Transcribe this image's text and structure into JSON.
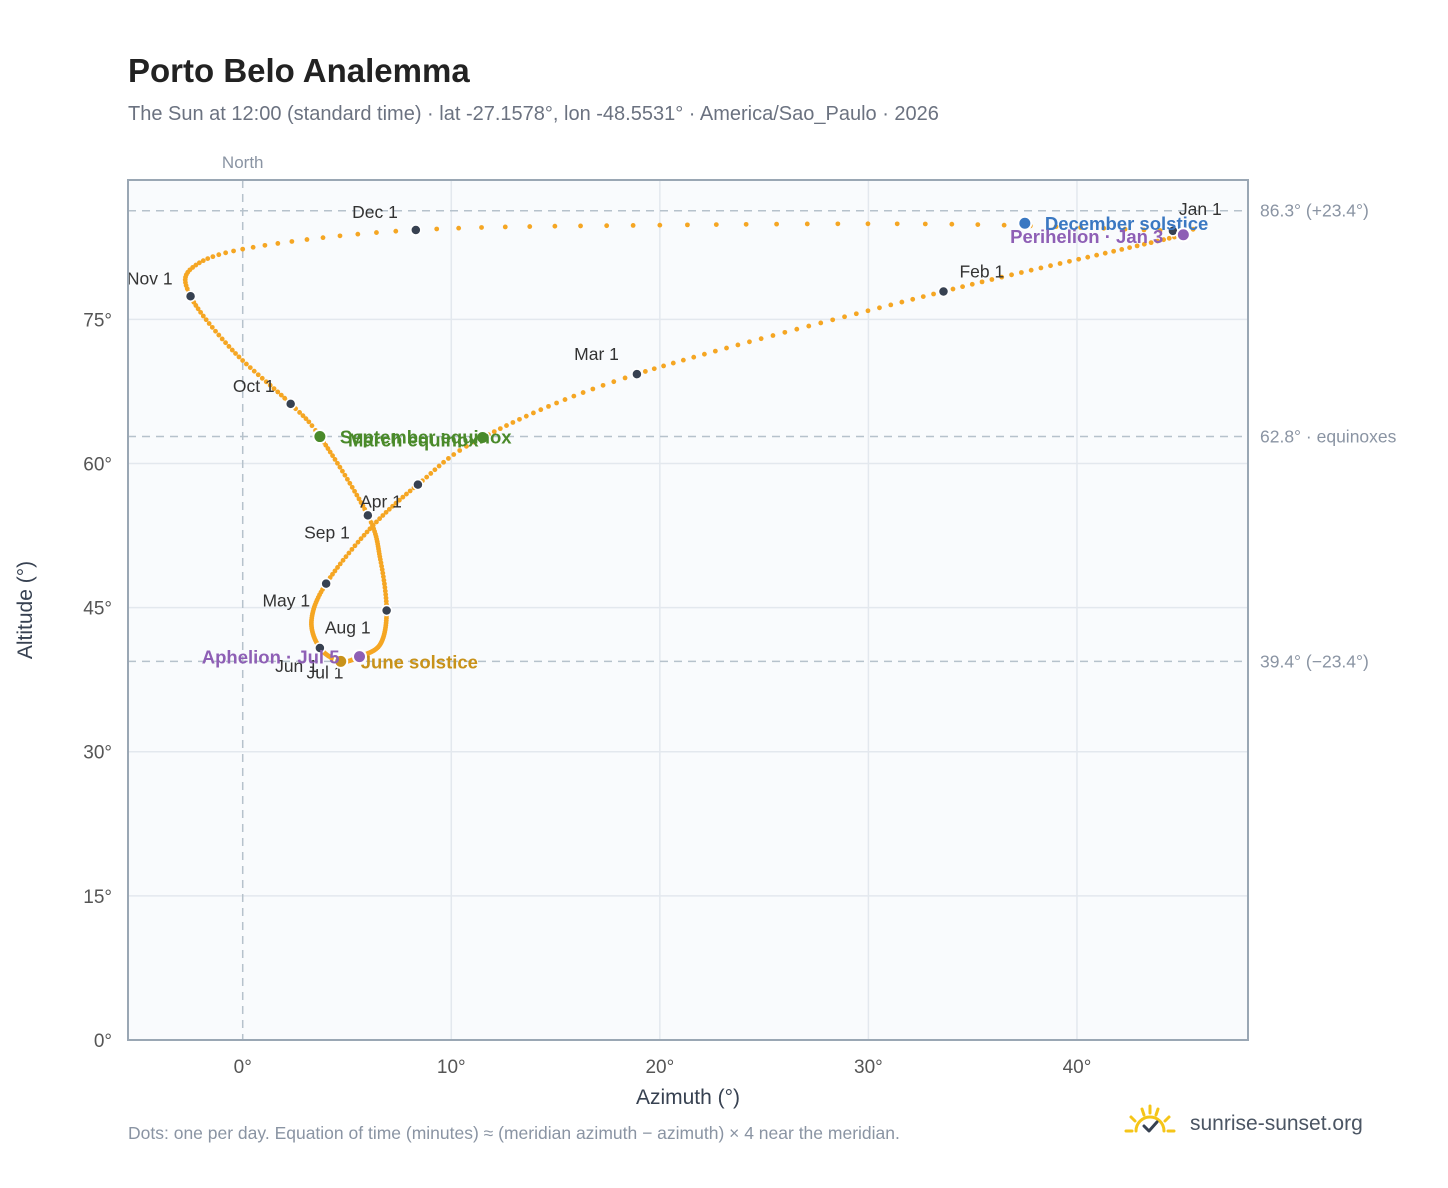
{
  "title": "Porto Belo Analemma",
  "subtitle": "The Sun at 12:00 (standard time) · lat -27.1578°, lon -48.5531° · America/Sao_Paulo · 2026",
  "footer_note": "Dots: one per day. Equation of time (minutes) ≈ (meridian azimuth − azimuth) × 4 near the meridian.",
  "brand": {
    "name": "sunrise-sunset.org",
    "icon": "sun-logo-icon"
  },
  "colors": {
    "curve": "#f5a623",
    "month_marker": "#374151",
    "december_solstice": "#3a78c2",
    "june_solstice": "#c8921a",
    "equinox": "#4a8a2a",
    "perihelion": "#8e5fb5",
    "ref_line": "#b6c2cc",
    "plot_bg": "#f9fbfd",
    "frame": "#9aa7b4"
  },
  "chart_data": {
    "type": "scatter",
    "title": "Porto Belo Analemma",
    "xlabel": "Azimuth (°)",
    "ylabel": "Altitude (°)",
    "xlim": [
      -5.5,
      48.2
    ],
    "ylim": [
      0,
      89.5
    ],
    "x_ticks": [
      0,
      10,
      20,
      30,
      40
    ],
    "x_tick_labels": [
      "0°",
      "10°",
      "20°",
      "30°",
      "40°"
    ],
    "y_ticks": [
      0,
      15,
      30,
      45,
      60,
      75
    ],
    "y_tick_labels": [
      "0°",
      "15°",
      "30°",
      "45°",
      "60°",
      "75°"
    ],
    "grid": true,
    "north": {
      "azimuth": 0,
      "label": "North"
    },
    "reference_lines": [
      {
        "altitude": 86.3,
        "label": "86.3° (+23.4°)"
      },
      {
        "altitude": 62.8,
        "label": "62.8° · equinoxes"
      },
      {
        "altitude": 39.4,
        "label": "39.4° (−23.4°)"
      }
    ],
    "curve_knots": [
      {
        "day": 1,
        "x": 44.6,
        "y": 84.2
      },
      {
        "day": 3,
        "x": 45.1,
        "y": 83.8
      },
      {
        "day": 32,
        "x": 33.6,
        "y": 77.9
      },
      {
        "day": 60,
        "x": 18.9,
        "y": 69.3
      },
      {
        "day": 79,
        "x": 11.5,
        "y": 62.7
      },
      {
        "day": 91,
        "x": 8.4,
        "y": 57.8
      },
      {
        "day": 105,
        "x": 6.1,
        "y": 53.2
      },
      {
        "day": 121,
        "x": 4.0,
        "y": 47.5
      },
      {
        "day": 136,
        "x": 3.3,
        "y": 43.7
      },
      {
        "day": 152,
        "x": 3.7,
        "y": 40.8
      },
      {
        "day": 172,
        "x": 4.7,
        "y": 39.4
      },
      {
        "day": 182,
        "x": 5.6,
        "y": 39.9
      },
      {
        "day": 197,
        "x": 6.6,
        "y": 41.2
      },
      {
        "day": 213,
        "x": 6.9,
        "y": 44.7
      },
      {
        "day": 228,
        "x": 6.6,
        "y": 50.0
      },
      {
        "day": 244,
        "x": 6.0,
        "y": 54.6
      },
      {
        "day": 266,
        "x": 3.7,
        "y": 62.8
      },
      {
        "day": 274,
        "x": 2.3,
        "y": 66.2
      },
      {
        "day": 290,
        "x": -0.5,
        "y": 71.8
      },
      {
        "day": 305,
        "x": -2.5,
        "y": 77.4
      },
      {
        "day": 315,
        "x": -2.4,
        "y": 80.4
      },
      {
        "day": 325,
        "x": 0.5,
        "y": 82.5
      },
      {
        "day": 335,
        "x": 8.3,
        "y": 84.3
      },
      {
        "day": 345,
        "x": 20.0,
        "y": 84.8
      },
      {
        "day": 355,
        "x": 34.0,
        "y": 84.9
      },
      {
        "day": 365,
        "x": 44.6,
        "y": 84.2
      }
    ],
    "month_markers": [
      {
        "label": "Jan 1",
        "x": 44.6,
        "y": 84.2,
        "anchor": "start",
        "dx": 6,
        "dy": -16
      },
      {
        "label": "Feb 1",
        "x": 33.6,
        "y": 77.9,
        "anchor": "start",
        "dx": 16,
        "dy": -14
      },
      {
        "label": "Mar 1",
        "x": 18.9,
        "y": 69.3,
        "anchor": "end",
        "dx": -18,
        "dy": -14
      },
      {
        "label": "Apr 1",
        "x": 8.4,
        "y": 57.8,
        "anchor": "end",
        "dx": -16,
        "dy": 23
      },
      {
        "label": "May 1",
        "x": 4.0,
        "y": 47.5,
        "anchor": "end",
        "dx": -16,
        "dy": 23
      },
      {
        "label": "Jun 1",
        "x": 3.7,
        "y": 40.8,
        "anchor": "end",
        "dx": -2,
        "dy": 24
      },
      {
        "label": "Jul 1",
        "x": 5.6,
        "y": 39.9,
        "anchor": "end",
        "dx": -16,
        "dy": 22
      },
      {
        "label": "Aug 1",
        "x": 6.9,
        "y": 44.7,
        "anchor": "end",
        "dx": -16,
        "dy": 23
      },
      {
        "label": "Sep 1",
        "x": 6.0,
        "y": 54.6,
        "anchor": "end",
        "dx": -18,
        "dy": 23
      },
      {
        "label": "Oct 1",
        "x": 2.3,
        "y": 66.2,
        "anchor": "end",
        "dx": -16,
        "dy": -12
      },
      {
        "label": "Nov 1",
        "x": -2.5,
        "y": 77.4,
        "anchor": "end",
        "dx": -18,
        "dy": -12
      },
      {
        "label": "Dec 1",
        "x": 8.3,
        "y": 84.3,
        "anchor": "end",
        "dx": -18,
        "dy": -12
      }
    ],
    "events": [
      {
        "label": "December solstice",
        "x": 37.5,
        "y": 85.0,
        "color_key": "december_solstice",
        "anchor": "start",
        "dx": 20,
        "dy": 7
      },
      {
        "label": "Perihelion · Jan 3",
        "x": 45.1,
        "y": 83.8,
        "color_key": "perihelion",
        "anchor": "end",
        "dx": -20,
        "dy": 8
      },
      {
        "label": "March equinox",
        "x": 11.5,
        "y": 62.7,
        "color_key": "equinox",
        "anchor": "end",
        "dx": -4,
        "dy": 9
      },
      {
        "label": "September equinox",
        "x": 3.7,
        "y": 62.8,
        "color_key": "equinox",
        "anchor": "start",
        "dx": 20,
        "dy": 7
      },
      {
        "label": "June solstice",
        "x": 4.7,
        "y": 39.4,
        "color_key": "june_solstice",
        "anchor": "start",
        "dx": 20,
        "dy": 7
      },
      {
        "label": "Aphelion · Jul 5",
        "x": 5.6,
        "y": 39.9,
        "color_key": "perihelion",
        "anchor": "end",
        "dx": -20,
        "dy": 7
      }
    ]
  }
}
